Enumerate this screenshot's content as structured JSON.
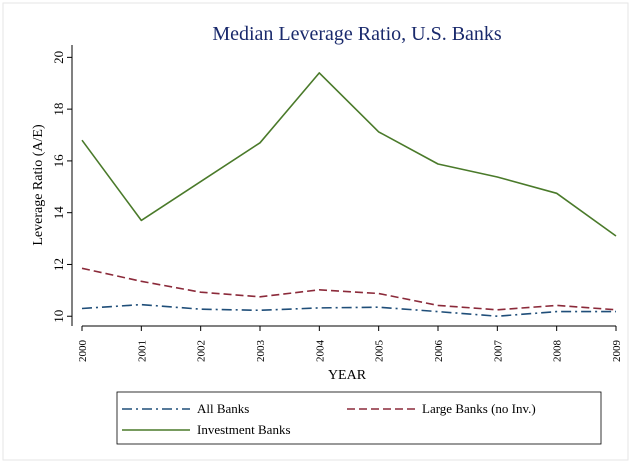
{
  "chart_data": {
    "type": "line",
    "title": "Median Leverage Ratio, U.S. Banks",
    "xlabel": "YEAR",
    "ylabel": "Leverage Ratio (A/E)",
    "categories": [
      "2000",
      "2001",
      "2002",
      "2003",
      "2004",
      "2005",
      "2006",
      "2007",
      "2008",
      "2009"
    ],
    "yticks": [
      "10",
      "12",
      "14",
      "16",
      "18",
      "20"
    ],
    "ylim": [
      9.7,
      20.4
    ],
    "grid": false,
    "legend_position": "bottom",
    "series": [
      {
        "name": "All Banks",
        "style": "dash-dot",
        "color": "#1f4e79",
        "values": [
          10.3,
          10.45,
          10.27,
          10.23,
          10.32,
          10.35,
          10.18,
          10.0,
          10.18,
          10.18
        ]
      },
      {
        "name": "Large Banks (no Inv.)",
        "style": "dashed",
        "color": "#8b2a3a",
        "values": [
          11.85,
          11.35,
          10.93,
          10.75,
          11.02,
          10.88,
          10.42,
          10.25,
          10.42,
          10.25
        ]
      },
      {
        "name": "Investment Banks",
        "style": "solid",
        "color": "#4a7a2a",
        "values": [
          16.8,
          13.7,
          15.2,
          16.7,
          19.4,
          17.12,
          15.88,
          15.38,
          14.75,
          13.1
        ]
      }
    ]
  },
  "colors": {
    "title": "#1a2a6c",
    "plot_background": "#ffffff",
    "page_background": "#ffffff"
  }
}
